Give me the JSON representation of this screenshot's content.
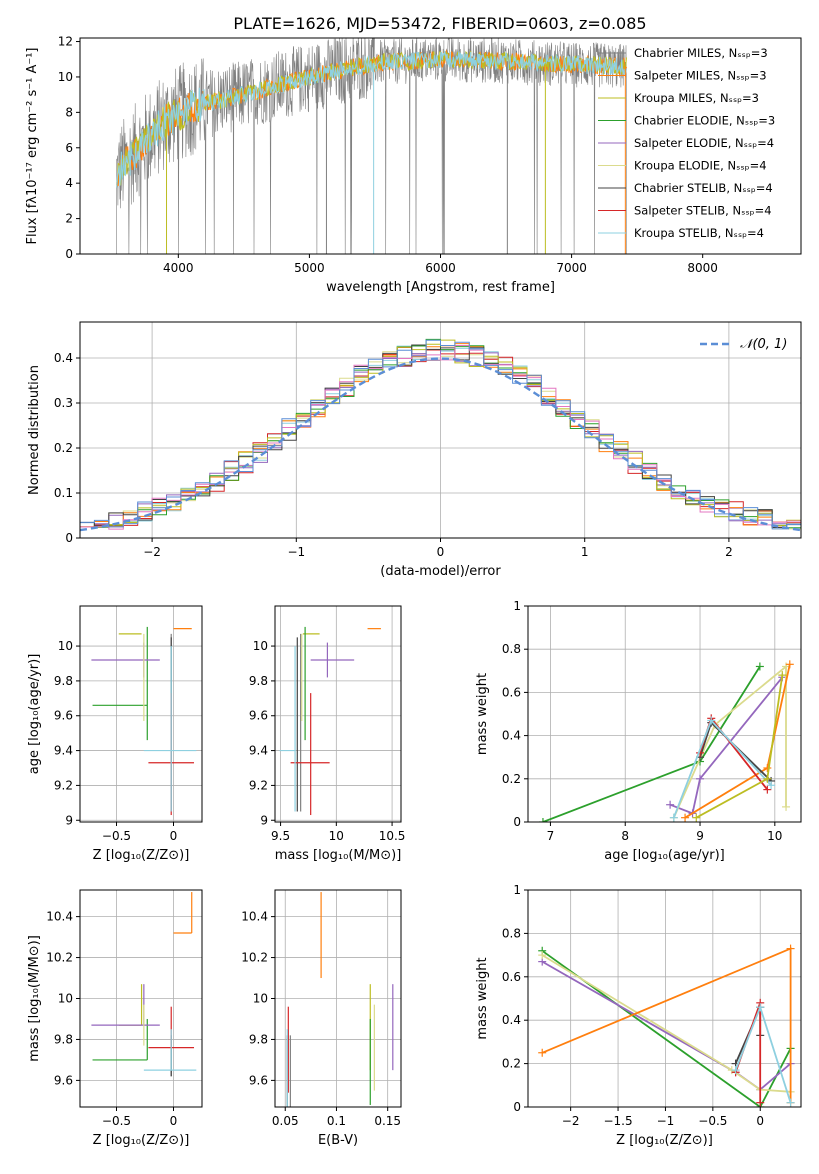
{
  "title": "PLATE=1626, MJD=53472, FIBERID=0603, z=0.085",
  "colors": {
    "Chabrier MILES": "#808080",
    "Salpeter MILES": "#ff7f0e",
    "Kroupa MILES": "#bcbd22",
    "Chabrier ELODIE": "#2ca02c",
    "Salpeter ELODIE": "#9467bd",
    "Kroupa ELODIE": "#dbdb8d",
    "Chabrier STELIB": "#444444",
    "Salpeter STELIB": "#d62728",
    "Kroupa STELIB": "#8ed0e0",
    "gauss": "#5b8ed6"
  },
  "chart_data": [
    {
      "id": "spectrum",
      "type": "line",
      "title": "PLATE=1626, MJD=53472, FIBERID=0603, z=0.085",
      "xlabel": "wavelength [Angstrom, rest frame]",
      "ylabel": "Flux [fλ10⁻¹⁷ erg cm⁻² s⁻¹ A⁻¹]",
      "xlim": [
        3250,
        8750
      ],
      "ylim": [
        0,
        12.2
      ],
      "xticks": [
        4000,
        5000,
        6000,
        7000,
        8000
      ],
      "yticks": [
        0,
        2,
        4,
        6,
        8,
        10,
        12
      ],
      "legend_position": "upper-right",
      "legend": [
        "Chabrier MILES, Nₛₛₚ=3",
        "Salpeter MILES, Nₛₛₚ=3",
        "Kroupa MILES, Nₛₛₚ=3",
        "Chabrier ELODIE, Nₛₛₚ=3",
        "Salpeter ELODIE, Nₛₛₚ=4",
        "Kroupa ELODIE, Nₛₛₚ=4",
        "Chabrier STELIB, Nₛₛₚ=4",
        "Salpeter STELIB, Nₛₛₚ=4",
        "Kroupa STELIB, Nₛₛₚ=4"
      ],
      "data_range": [
        3530,
        7420
      ],
      "continuum": [
        [
          3530,
          4.5
        ],
        [
          3700,
          6.0
        ],
        [
          3900,
          7.5
        ],
        [
          4100,
          8.3
        ],
        [
          4500,
          9.0
        ],
        [
          5000,
          10.0
        ],
        [
          5500,
          10.8
        ],
        [
          6000,
          11.0
        ],
        [
          6500,
          10.9
        ],
        [
          7000,
          10.7
        ],
        [
          7420,
          10.6
        ]
      ]
    },
    {
      "id": "residuals",
      "type": "line",
      "xlabel": "(data-model)/error",
      "ylabel": "Normed distribution",
      "xlim": [
        -2.5,
        2.5
      ],
      "ylim": [
        0,
        0.48
      ],
      "xticks": [
        -2,
        -1,
        0,
        1,
        2
      ],
      "yticks": [
        0.0,
        0.1,
        0.2,
        0.3,
        0.4
      ],
      "grid": true,
      "legend_position": "upper-right",
      "legend": [
        "𝒩(0, 1)"
      ],
      "bin_width": 0.1
    },
    {
      "id": "age_vs_Z",
      "type": "scatter",
      "xlabel": "Z [log₁₀(Z/Z⊙)]",
      "ylabel": "age  [log₁₀(age/yr)]",
      "xlim": [
        -0.82,
        0.25
      ],
      "ylim": [
        8.99,
        10.23
      ],
      "xticks": [
        -0.5,
        0.0
      ],
      "yticks": [
        9.0,
        9.2,
        9.4,
        9.6,
        9.8,
        10.0
      ],
      "grid": true
    },
    {
      "id": "age_vs_mass",
      "type": "scatter",
      "xlabel": "mass [log₁₀(M/M⊙)]",
      "ylabel": "",
      "xlim": [
        9.45,
        10.58
      ],
      "ylim": [
        8.99,
        10.23
      ],
      "xticks": [
        9.5,
        10.0,
        10.5
      ],
      "yticks": [
        9.0,
        9.2,
        9.4,
        9.6,
        9.8,
        10.0
      ],
      "grid": true
    },
    {
      "id": "weight_vs_age",
      "type": "line",
      "xlabel": "age  [log₁₀(age/yr)]",
      "ylabel": "mass weight",
      "xlim": [
        6.7,
        10.35
      ],
      "ylim": [
        0,
        1
      ],
      "xticks": [
        7,
        8,
        9,
        10
      ],
      "yticks": [
        0.0,
        0.2,
        0.4,
        0.6,
        0.8,
        1.0
      ],
      "grid": true
    },
    {
      "id": "mass_vs_Z",
      "type": "scatter",
      "xlabel": "Z [log₁₀(Z/Z⊙)]",
      "ylabel": "mass [log₁₀(M/M⊙)]",
      "xlim": [
        -0.82,
        0.25
      ],
      "ylim": [
        9.47,
        10.53
      ],
      "xticks": [
        -0.5,
        0.0
      ],
      "yticks": [
        9.6,
        9.8,
        10.0,
        10.2,
        10.4
      ],
      "grid": true
    },
    {
      "id": "mass_vs_ebv",
      "type": "scatter",
      "xlabel": "E(B-V)",
      "ylabel": "",
      "xlim": [
        0.04,
        0.163
      ],
      "ylim": [
        9.47,
        10.53
      ],
      "xticks": [
        0.05,
        0.1,
        0.15
      ],
      "yticks": [
        9.6,
        9.8,
        10.0,
        10.2,
        10.4
      ],
      "grid": true
    },
    {
      "id": "weight_vs_Z",
      "type": "line",
      "xlabel": "Z [log₁₀(Z/Z⊙)]",
      "ylabel": "mass weight",
      "xlim": [
        -2.45,
        0.43
      ],
      "ylim": [
        0,
        1
      ],
      "xticks": [
        -2.0,
        -1.5,
        -1.0,
        -0.5,
        0.0
      ],
      "yticks": [
        0.0,
        0.2,
        0.4,
        0.6,
        0.8,
        1.0
      ],
      "grid": true
    }
  ],
  "fits": [
    {
      "name": "Chabrier MILES",
      "Z": -0.02,
      "Zerr": [
        0.0,
        0.0
      ],
      "age": 9.55,
      "ageerr": [
        0.5,
        0.52
      ],
      "mass": 9.68,
      "masserr": [
        0.0,
        0.0
      ],
      "massZ": 9.62,
      "ebv": 0.055,
      "ebverr": 0.4
    },
    {
      "name": "Salpeter MILES",
      "Z": 0.16,
      "Zerr": [
        0.16,
        0.0
      ],
      "age": 10.1,
      "ageerr": [
        0.0,
        0.0
      ],
      "mass": 10.4,
      "masserr": [
        0.12,
        0.0
      ],
      "massZ": 10.32,
      "ebv": 0.085,
      "ebverr": 0.21
    },
    {
      "name": "Kroupa MILES",
      "Z": -0.28,
      "Zerr": [
        0.2,
        0.0
      ],
      "age": 10.07,
      "ageerr": [
        0.0,
        0.0
      ],
      "mass": 9.85,
      "masserr": [
        0.15,
        0.0
      ],
      "massZ": 9.87,
      "ebv": 0.133,
      "ebverr": 0.0
    },
    {
      "name": "Chabrier ELODIE",
      "Z": -0.23,
      "Zerr": [
        0.48,
        0.0
      ],
      "age": 9.66,
      "ageerr": [
        0.2,
        0.45
      ],
      "mass": 9.72,
      "masserr": [
        0.0,
        0.0
      ],
      "massZ": 9.7,
      "ebv": 0.133,
      "ebverr": 0.46
    },
    {
      "name": "Salpeter ELODIE",
      "Z": -0.26,
      "Zerr": [
        0.46,
        0.14
      ],
      "age": 9.92,
      "ageerr": [
        0.1,
        0.1
      ],
      "mass": 9.92,
      "masserr": [
        0.15,
        0.24
      ],
      "massZ": 9.87,
      "ebv": 0.155,
      "ebverr": 0.42
    },
    {
      "name": "Kroupa ELODIE",
      "Z": -0.26,
      "Zerr": [
        0.0,
        0.0
      ],
      "age": 10.07,
      "ageerr": [
        0.5,
        0.0
      ],
      "mass": 9.69,
      "masserr": [
        0.0,
        0.0
      ],
      "massZ": 9.77,
      "ebv": 0.137,
      "ebverr": 0.3
    },
    {
      "name": "Chabrier STELIB",
      "Z": -0.02,
      "Zerr": [
        0.0,
        0.0
      ],
      "age": 9.4,
      "ageerr": [
        0.35,
        0.65
      ],
      "mass": 9.65,
      "masserr": [
        0.0,
        0.0
      ],
      "massZ": 9.62,
      "ebv": 0.052,
      "ebverr": 0.5
    },
    {
      "name": "Salpeter STELIB",
      "Z": -0.02,
      "Zerr": [
        0.2,
        0.2
      ],
      "age": 9.33,
      "ageerr": [
        0.3,
        0.4
      ],
      "mass": 9.77,
      "masserr": [
        0.18,
        0.17
      ],
      "massZ": 9.76,
      "ebv": 0.053,
      "ebverr": 0.58
    },
    {
      "name": "Kroupa STELIB",
      "Z": -0.02,
      "Zerr": [
        0.24,
        0.22
      ],
      "age": 9.4,
      "ageerr": [
        0.35,
        0.6
      ],
      "mass": 9.63,
      "masserr": [
        0.14,
        0.0
      ],
      "massZ": 9.65,
      "ebv": 0.052,
      "ebverr": 0.5
    }
  ],
  "weights_age": [
    {
      "name": "Chabrier ELODIE",
      "pts": [
        [
          6.9,
          0.0
        ],
        [
          9.0,
          0.28
        ],
        [
          9.8,
          0.72
        ]
      ]
    },
    {
      "name": "Salpeter ELODIE",
      "pts": [
        [
          8.6,
          0.08
        ],
        [
          8.9,
          0.04
        ],
        [
          9.0,
          0.2
        ],
        [
          10.1,
          0.67
        ]
      ]
    },
    {
      "name": "Kroupa ELODIE",
      "pts": [
        [
          8.65,
          0.02
        ],
        [
          9.2,
          0.45
        ],
        [
          10.15,
          0.72
        ],
        [
          10.15,
          0.07
        ]
      ]
    },
    {
      "name": "Salpeter MILES",
      "pts": [
        [
          8.8,
          0.02
        ],
        [
          9.9,
          0.25
        ],
        [
          10.2,
          0.73
        ]
      ]
    },
    {
      "name": "Chabrier STELIB",
      "pts": [
        [
          9.0,
          0.3
        ],
        [
          9.15,
          0.46
        ],
        [
          9.95,
          0.19
        ]
      ]
    },
    {
      "name": "Salpeter STELIB",
      "pts": [
        [
          9.0,
          0.32
        ],
        [
          9.15,
          0.48
        ],
        [
          9.9,
          0.15
        ]
      ]
    },
    {
      "name": "Kroupa STELIB",
      "pts": [
        [
          8.65,
          0.02
        ],
        [
          9.15,
          0.47
        ],
        [
          9.95,
          0.17
        ]
      ]
    },
    {
      "name": "Kroupa MILES",
      "pts": [
        [
          8.95,
          0.02
        ],
        [
          9.9,
          0.2
        ],
        [
          10.1,
          0.68
        ]
      ]
    }
  ],
  "weights_Z": [
    {
      "name": "Chabrier ELODIE",
      "pts": [
        [
          -2.3,
          0.72
        ],
        [
          0.0,
          0.0
        ],
        [
          0.32,
          0.27
        ]
      ]
    },
    {
      "name": "Salpeter ELODIE",
      "pts": [
        [
          -2.3,
          0.67
        ],
        [
          -0.26,
          0.16
        ],
        [
          0.0,
          0.08
        ],
        [
          0.32,
          0.2
        ]
      ]
    },
    {
      "name": "Kroupa ELODIE",
      "pts": [
        [
          -2.3,
          0.7
        ],
        [
          -0.3,
          0.17
        ],
        [
          0.0,
          0.08
        ],
        [
          0.32,
          0.07
        ]
      ]
    },
    {
      "name": "Salpeter MILES",
      "pts": [
        [
          -2.3,
          0.25
        ],
        [
          0.32,
          0.73
        ],
        [
          0.32,
          0.02
        ]
      ]
    },
    {
      "name": "Chabrier STELIB",
      "pts": [
        [
          -0.26,
          0.2
        ],
        [
          0.0,
          0.46
        ],
        [
          0.0,
          0.33
        ]
      ]
    },
    {
      "name": "Salpeter STELIB",
      "pts": [
        [
          -0.26,
          0.16
        ],
        [
          0.0,
          0.48
        ],
        [
          0.0,
          0.02
        ]
      ]
    },
    {
      "name": "Kroupa STELIB",
      "pts": [
        [
          -0.26,
          0.17
        ],
        [
          0.0,
          0.46
        ],
        [
          0.32,
          0.02
        ]
      ]
    }
  ]
}
